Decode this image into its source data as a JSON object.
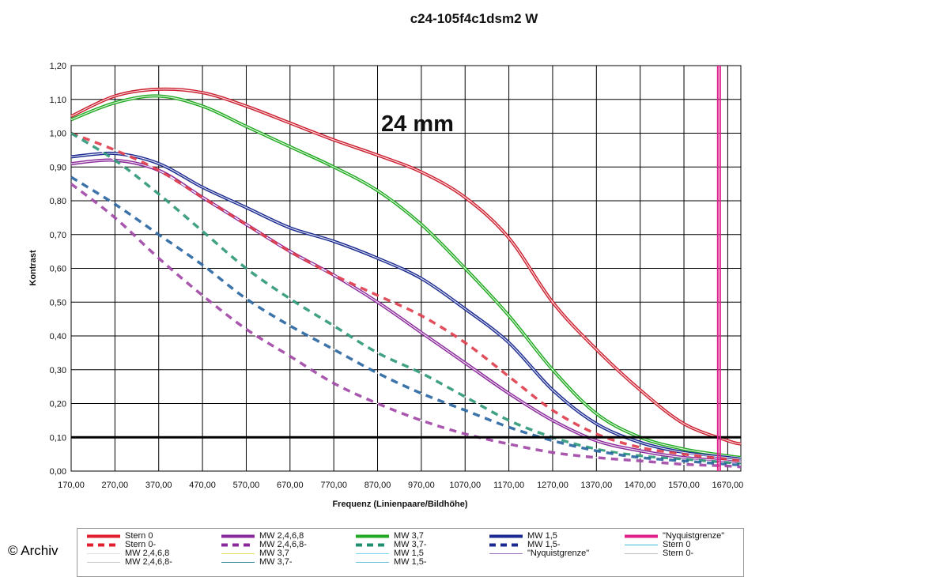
{
  "credit": "© Archiv",
  "chart_data": {
    "type": "line",
    "title": "c24-105f4c1dsm2 W",
    "annotation": "24 mm",
    "xlabel": "Frequenz (Linienpaare/Bildhöhe)",
    "ylabel": "Kontrast",
    "xlim": [
      170,
      1700
    ],
    "ylim": [
      0,
      1.2
    ],
    "grid": true,
    "x_ticks": [
      "170,00",
      "270,00",
      "370,00",
      "470,00",
      "570,00",
      "670,00",
      "770,00",
      "870,00",
      "970,00",
      "1070,00",
      "1170,00",
      "1270,00",
      "1370,00",
      "1470,00",
      "1570,00",
      "1670,00"
    ],
    "y_ticks": [
      "0,00",
      "0,10",
      "0,20",
      "0,30",
      "0,40",
      "0,50",
      "0,60",
      "0,70",
      "0,80",
      "0,90",
      "1,00",
      "1,10",
      "1,20"
    ],
    "threshold_line": 0.1,
    "nyquist_x": 1650,
    "series": [
      {
        "name": "Stern 0",
        "color": "#cc2030",
        "dashed": false,
        "x": [
          170,
          270,
          370,
          470,
          570,
          670,
          770,
          870,
          970,
          1070,
          1170,
          1270,
          1370,
          1470,
          1570,
          1670,
          1700
        ],
        "y": [
          1.05,
          1.11,
          1.13,
          1.12,
          1.08,
          1.03,
          0.98,
          0.935,
          0.885,
          0.81,
          0.69,
          0.5,
          0.36,
          0.24,
          0.14,
          0.09,
          0.08
        ]
      },
      {
        "name": "MW 3,7",
        "color": "#22aa22",
        "dashed": false,
        "x": [
          170,
          270,
          370,
          470,
          570,
          670,
          770,
          870,
          970,
          1070,
          1170,
          1270,
          1370,
          1470,
          1570,
          1670,
          1700
        ],
        "y": [
          1.04,
          1.09,
          1.11,
          1.08,
          1.02,
          0.96,
          0.9,
          0.83,
          0.73,
          0.6,
          0.46,
          0.3,
          0.17,
          0.1,
          0.065,
          0.045,
          0.04
        ]
      },
      {
        "name": "MW 1,5",
        "color": "#1a2a90",
        "dashed": false,
        "x": [
          170,
          270,
          370,
          470,
          570,
          670,
          770,
          870,
          970,
          1070,
          1170,
          1270,
          1370,
          1470,
          1570,
          1670,
          1700
        ],
        "y": [
          0.93,
          0.94,
          0.91,
          0.84,
          0.78,
          0.72,
          0.68,
          0.63,
          0.57,
          0.48,
          0.38,
          0.24,
          0.14,
          0.085,
          0.055,
          0.04,
          0.035
        ]
      },
      {
        "name": "MW 2,4,6,8",
        "color": "#8a2a9a",
        "dashed": false,
        "x": [
          170,
          270,
          370,
          470,
          570,
          670,
          770,
          870,
          970,
          1070,
          1170,
          1270,
          1370,
          1470,
          1570,
          1670,
          1700
        ],
        "y": [
          0.91,
          0.92,
          0.89,
          0.81,
          0.73,
          0.65,
          0.58,
          0.5,
          0.41,
          0.32,
          0.23,
          0.15,
          0.09,
          0.06,
          0.04,
          0.03,
          0.025
        ]
      },
      {
        "name": "Stern 0-",
        "color": "#dd3040",
        "dashed": true,
        "x": [
          170,
          270,
          370,
          470,
          570,
          670,
          770,
          870,
          970,
          1070,
          1170,
          1270,
          1370,
          1470,
          1570,
          1670,
          1700
        ],
        "y": [
          1.0,
          0.95,
          0.89,
          0.81,
          0.73,
          0.65,
          0.58,
          0.52,
          0.46,
          0.38,
          0.28,
          0.18,
          0.11,
          0.07,
          0.05,
          0.035,
          0.03
        ]
      },
      {
        "name": "MW 3,7-",
        "color": "#209070",
        "dashed": true,
        "x": [
          170,
          270,
          370,
          470,
          570,
          670,
          770,
          870,
          970,
          1070,
          1170,
          1270,
          1370,
          1470,
          1570,
          1670,
          1700
        ],
        "y": [
          1.0,
          0.92,
          0.82,
          0.71,
          0.6,
          0.51,
          0.43,
          0.35,
          0.29,
          0.22,
          0.15,
          0.1,
          0.065,
          0.045,
          0.035,
          0.025,
          0.02
        ]
      },
      {
        "name": "MW 1,5-",
        "color": "#1a5a9a",
        "dashed": true,
        "x": [
          170,
          270,
          370,
          470,
          570,
          670,
          770,
          870,
          970,
          1070,
          1170,
          1270,
          1370,
          1470,
          1570,
          1670,
          1700
        ],
        "y": [
          0.87,
          0.79,
          0.7,
          0.61,
          0.51,
          0.43,
          0.36,
          0.29,
          0.23,
          0.18,
          0.13,
          0.09,
          0.06,
          0.04,
          0.03,
          0.02,
          0.018
        ]
      },
      {
        "name": "MW 2,4,6,8-",
        "color": "#9a3aa0",
        "dashed": true,
        "x": [
          170,
          270,
          370,
          470,
          570,
          670,
          770,
          870,
          970,
          1070,
          1170,
          1270,
          1370,
          1470,
          1570,
          1670,
          1700
        ],
        "y": [
          0.85,
          0.75,
          0.63,
          0.52,
          0.42,
          0.34,
          0.26,
          0.2,
          0.15,
          0.11,
          0.08,
          0.055,
          0.04,
          0.03,
          0.02,
          0.015,
          0.012
        ]
      }
    ],
    "legend": [
      [
        "Stern 0",
        "#e01e2e",
        "solid-thick"
      ],
      [
        "MW 2,4,6,8",
        "#8a2a9a",
        "solid-thick"
      ],
      [
        "MW 3,7",
        "#22aa22",
        "solid-thick"
      ],
      [
        "MW 1,5",
        "#1a2a90",
        "solid-thick"
      ],
      [
        "\"Nyquistgrenze\"",
        "#e0208a",
        "solid-thick"
      ],
      [
        "Stern 0-",
        "#e01e2e",
        "dashed-thick"
      ],
      [
        "MW 2,4,6,8-",
        "#8a2a9a",
        "dashed-thick"
      ],
      [
        "MW 3,7-",
        "#209070",
        "dashed-thick"
      ],
      [
        "MW 1,5-",
        "#1a2a90",
        "dashed-thick"
      ],
      [
        "Stern 0",
        "#36b8d8",
        "thin"
      ],
      [
        "MW 2,4,6,8",
        "#dddddd",
        "thin"
      ],
      [
        "MW 3,7",
        "#e8e060",
        "thin"
      ],
      [
        "MW 1,5",
        "#7ad8ee",
        "thin"
      ],
      [
        "\"Nyquistgrenze\"",
        "#a070c0",
        "thin"
      ],
      [
        "Stern 0-",
        "#c0c0c0",
        "thin"
      ],
      [
        "MW 2,4,6,8-",
        "#cccccc",
        "thin"
      ],
      [
        "MW 3,7-",
        "#3a8aa0",
        "thin"
      ],
      [
        "MW 1,5-",
        "#70c0e0",
        "thin"
      ]
    ]
  }
}
